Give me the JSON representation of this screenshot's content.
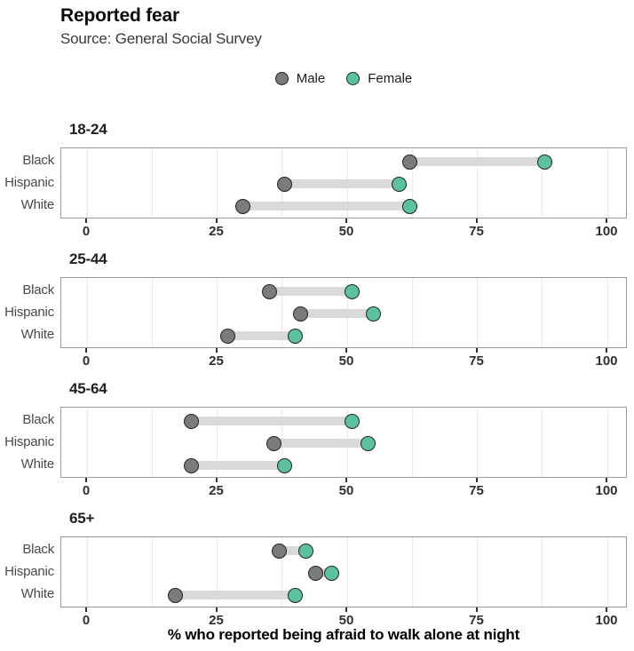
{
  "header": {
    "title": "Reported fear",
    "subtitle": "Source: General Social Survey"
  },
  "legend": {
    "items": [
      {
        "label": "Male",
        "color": "#7b7b7b"
      },
      {
        "label": "Female",
        "color": "#5cc1a0"
      }
    ]
  },
  "axis": {
    "x_ticks": [
      "0",
      "25",
      "50",
      "75",
      "100"
    ],
    "x_title": "% who reported being afraid to walk alone at night"
  },
  "colors": {
    "male_fill": "#7b7b7b",
    "female_fill": "#5cc1a0",
    "dot_stroke": "#222222",
    "connector": "#d9d9d9",
    "gridline": "#e9e9e9",
    "panel_border": "#9a9a9a"
  },
  "chart_data": {
    "type": "dumbbell",
    "title": "Reported fear",
    "subtitle": "Source: General Social Survey",
    "xlabel": "% who reported being afraid to walk alone at night",
    "xlim": [
      0,
      100
    ],
    "x_ticks": [
      0,
      25,
      50,
      75,
      100
    ],
    "grid_minor_step": 12.5,
    "legend_position": "top-center",
    "series_names": [
      "Male",
      "Female"
    ],
    "categories": [
      "Black",
      "Hispanic",
      "White"
    ],
    "facets": [
      {
        "label": "18-24",
        "rows": [
          {
            "category": "Black",
            "male": 62,
            "female": 88
          },
          {
            "category": "Hispanic",
            "male": 38,
            "female": 60
          },
          {
            "category": "White",
            "male": 30,
            "female": 62
          }
        ]
      },
      {
        "label": "25-44",
        "rows": [
          {
            "category": "Black",
            "male": 35,
            "female": 51
          },
          {
            "category": "Hispanic",
            "male": 41,
            "female": 55
          },
          {
            "category": "White",
            "male": 27,
            "female": 40
          }
        ]
      },
      {
        "label": "45-64",
        "rows": [
          {
            "category": "Black",
            "male": 20,
            "female": 51
          },
          {
            "category": "Hispanic",
            "male": 36,
            "female": 54
          },
          {
            "category": "White",
            "male": 20,
            "female": 38
          }
        ]
      },
      {
        "label": "65+",
        "rows": [
          {
            "category": "Black",
            "male": 37,
            "female": 42
          },
          {
            "category": "Hispanic",
            "male": 44,
            "female": 47
          },
          {
            "category": "White",
            "male": 17,
            "female": 40
          }
        ]
      }
    ]
  }
}
